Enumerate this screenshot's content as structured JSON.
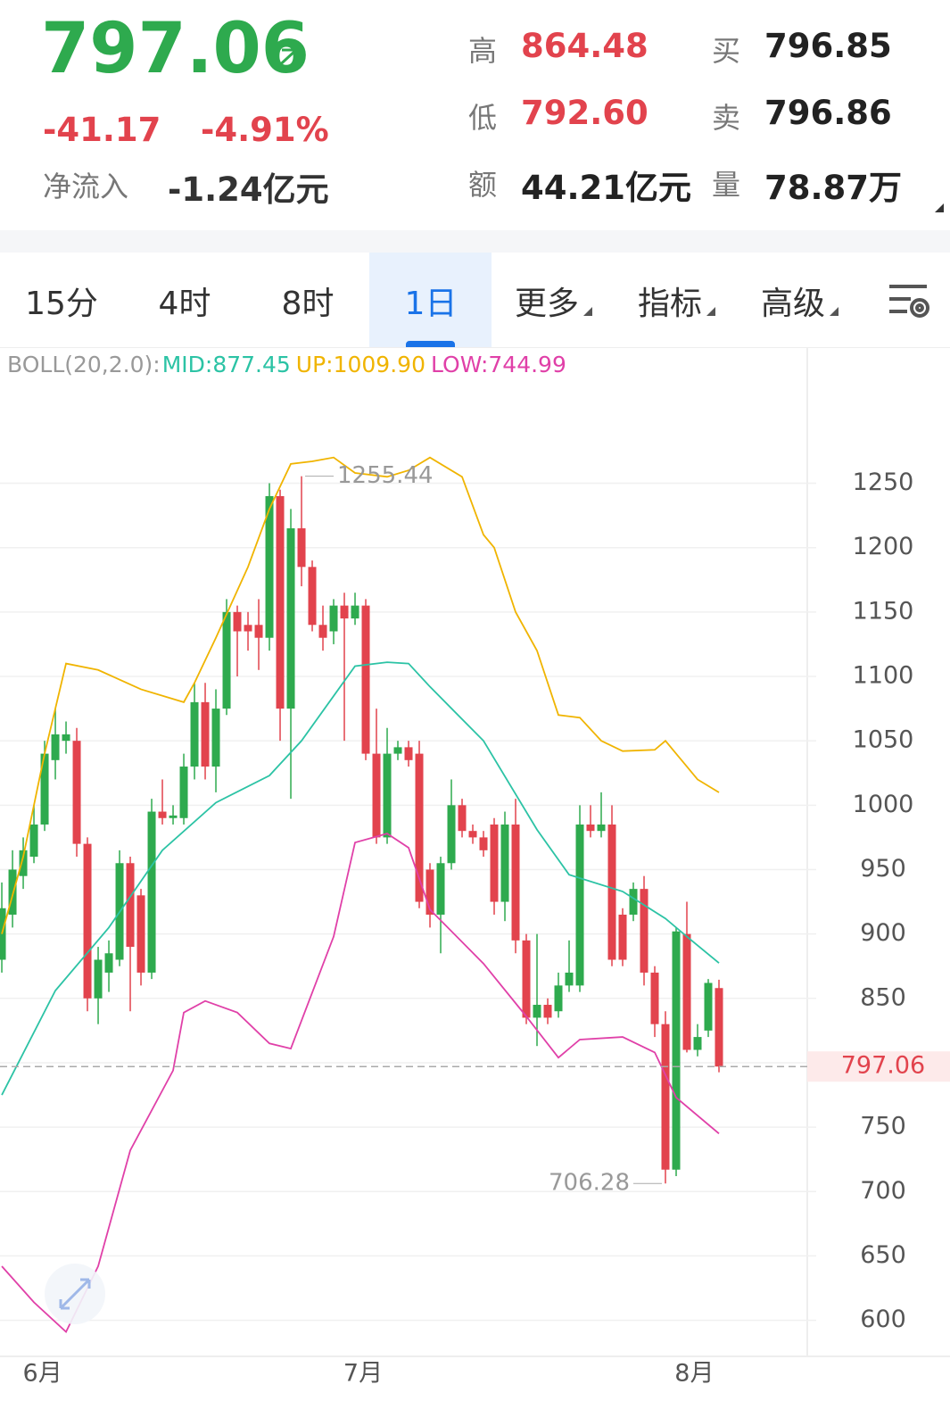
{
  "header": {
    "price": "797.06",
    "change": "-41.17",
    "change_pct": "-4.91%",
    "net_inflow_label": "净流入",
    "net_inflow": "-1.24亿元",
    "stats": [
      {
        "label": "高",
        "value": "864.48"
      },
      {
        "label": "低",
        "value": "792.60"
      },
      {
        "label": "额",
        "value": "44.21亿元"
      },
      {
        "label": "买",
        "value": "796.85"
      },
      {
        "label": "卖",
        "value": "796.86"
      },
      {
        "label": "量",
        "value": "78.87万"
      }
    ]
  },
  "tabs": [
    "15分",
    "4时",
    "8时",
    "1日",
    "更多",
    "指标",
    "高级"
  ],
  "active_tab": 3,
  "chart_data": {
    "type": "candlestick",
    "indicator": "BOLL(20,2.0):",
    "up_color": "#2eaa4e",
    "down_color": "#e2434d",
    "open": [
      880,
      915,
      945,
      960,
      985,
      1035,
      1050,
      1050,
      970,
      850,
      870,
      880,
      955,
      930,
      870,
      995,
      990,
      990,
      1030,
      1080,
      1030,
      1075,
      1150,
      1140,
      1140,
      1130,
      1240,
      1075,
      1215,
      1185,
      1140,
      1135,
      1155,
      1145,
      1155,
      1040,
      975,
      1040,
      1045,
      1040,
      950,
      915,
      955,
      1000,
      980,
      975,
      985,
      925,
      985,
      895,
      835,
      845,
      840,
      860,
      860,
      985,
      980,
      985,
      915,
      915,
      935,
      870,
      830,
      717,
      900,
      810,
      825,
      858
    ],
    "high": [
      940,
      965,
      975,
      1000,
      1050,
      1075,
      1065,
      1060,
      975,
      890,
      895,
      965,
      960,
      935,
      1005,
      1020,
      1000,
      1040,
      1095,
      1095,
      1090,
      1160,
      1155,
      1150,
      1160,
      1250,
      1245,
      1230,
      1255.44,
      1190,
      1155,
      1160,
      1165,
      1165,
      1160,
      1075,
      1060,
      1050,
      1050,
      1050,
      955,
      960,
      1020,
      1005,
      985,
      980,
      990,
      995,
      1005,
      900,
      900,
      850,
      870,
      895,
      1000,
      1000,
      1010,
      1000,
      920,
      940,
      945,
      875,
      840,
      905,
      925,
      830,
      865,
      864.48
    ],
    "low": [
      870,
      905,
      935,
      955,
      980,
      1020,
      1040,
      960,
      840,
      830,
      855,
      875,
      840,
      860,
      865,
      985,
      985,
      985,
      1020,
      1020,
      1010,
      1070,
      1100,
      1120,
      1105,
      1120,
      1050,
      1005,
      1170,
      1135,
      1120,
      1125,
      1050,
      1140,
      1035,
      970,
      970,
      1035,
      1030,
      920,
      905,
      885,
      950,
      975,
      970,
      960,
      915,
      910,
      885,
      830,
      813,
      830,
      835,
      855,
      855,
      975,
      975,
      875,
      875,
      910,
      860,
      820,
      706.28,
      712,
      808,
      805,
      820,
      792.6
    ],
    "close": [
      920,
      950,
      965,
      985,
      1040,
      1055,
      1055,
      970,
      850,
      880,
      885,
      955,
      890,
      870,
      995,
      990,
      992,
      1030,
      1080,
      1030,
      1075,
      1150,
      1135,
      1135,
      1130,
      1240,
      1075,
      1215,
      1185,
      1140,
      1130,
      1155,
      1145,
      1155,
      1040,
      975,
      1040,
      1045,
      1035,
      925,
      915,
      955,
      1000,
      980,
      975,
      965,
      925,
      985,
      895,
      835,
      845,
      835,
      860,
      870,
      985,
      980,
      985,
      880,
      880,
      935,
      870,
      830,
      717,
      902,
      810,
      820,
      862,
      797.06
    ],
    "series": [
      {
        "name": "MID",
        "label": "MID:877.45",
        "color": "#2cc3a5",
        "x": [
          0,
          5,
          10,
          15,
          20,
          25,
          28,
          33,
          36,
          38,
          40,
          45,
          50,
          53,
          58,
          62,
          64,
          67
        ],
        "values": [
          775,
          856,
          905,
          965,
          1002,
          1023,
          1050,
          1108,
          1111,
          1110,
          1092,
          1050,
          981,
          946,
          933,
          912,
          898,
          877.45
        ]
      },
      {
        "name": "UP",
        "label": "UP:1009.90",
        "color": "#f0b400",
        "x": [
          0,
          2,
          4,
          6,
          9,
          13,
          17,
          18,
          20,
          23,
          25,
          27,
          29,
          31,
          33,
          36,
          38,
          40,
          43,
          45,
          46,
          48,
          50,
          52,
          54,
          56,
          58,
          61,
          62,
          65,
          67
        ],
        "values": [
          900,
          960,
          1040,
          1110,
          1105,
          1090,
          1080,
          1095,
          1130,
          1185,
          1230,
          1265,
          1267,
          1270,
          1258,
          1255,
          1260,
          1270,
          1255,
          1210,
          1200,
          1150,
          1120,
          1070,
          1068,
          1050,
          1042,
          1043,
          1050,
          1020,
          1009.9
        ]
      },
      {
        "name": "LOW",
        "label": "LOW:744.99",
        "color": "#e040a8",
        "x": [
          0,
          3,
          6,
          9,
          12,
          16,
          17,
          19,
          22,
          25,
          27,
          31,
          33,
          36,
          38,
          40,
          45,
          49,
          52,
          54,
          58,
          61,
          63,
          67
        ],
        "values": [
          642,
          614,
          591,
          642,
          732,
          794,
          839,
          848,
          839,
          815,
          811,
          898,
          971,
          978,
          967,
          919,
          877,
          836,
          804,
          818,
          820,
          808,
          773,
          744.99
        ]
      }
    ],
    "high_label": "1255.44",
    "low_label": "706.28",
    "last_price": 797.06,
    "xlim": [
      -0.17,
      75.25
    ],
    "ylim": [
      572,
      1355
    ],
    "xticks": [
      {
        "value": 3.8,
        "label": "6月"
      },
      {
        "value": 33.75,
        "label": "7月"
      },
      {
        "value": 64.7,
        "label": "8月"
      }
    ],
    "yticks": [
      600,
      650,
      700,
      750,
      800,
      850,
      900,
      950,
      1000,
      1050,
      1100,
      1150,
      1200,
      1250
    ],
    "ytick_labels_shown": [
      600,
      650,
      700,
      750,
      850,
      900,
      950,
      1000,
      1050,
      1100,
      1150,
      1200,
      1250
    ]
  }
}
